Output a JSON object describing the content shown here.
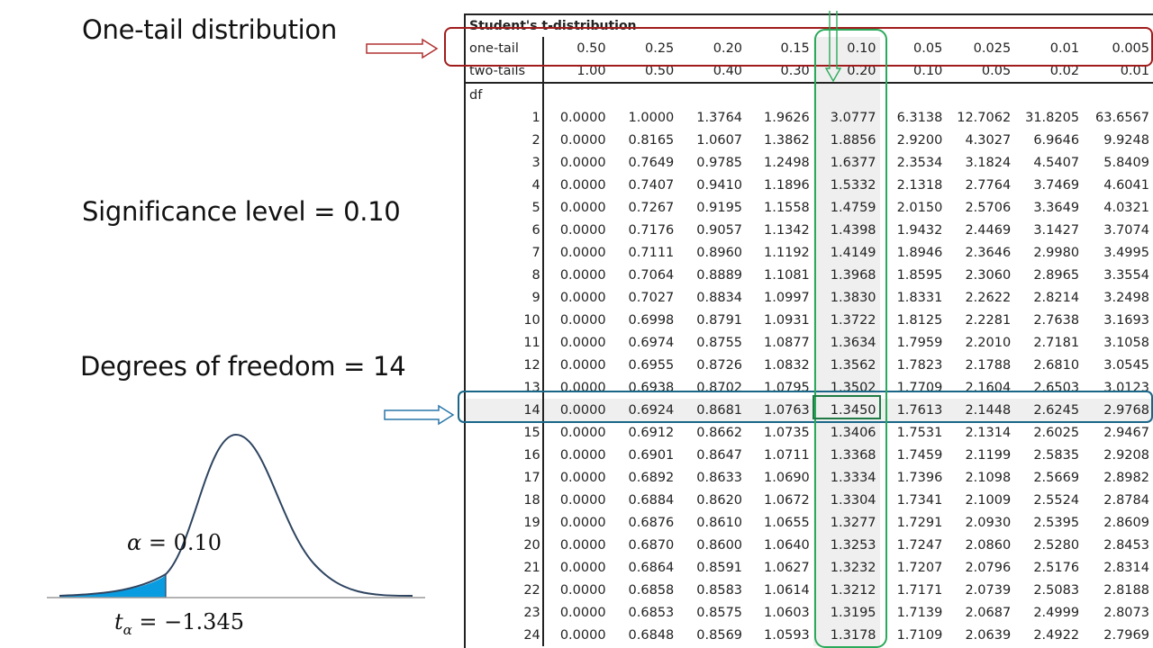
{
  "labels": {
    "one_tail": "One-tail distribution",
    "significance": "Significance level = 0.10",
    "dof": "Degrees of freedom = 14"
  },
  "figure": {
    "alpha_sym": "α",
    "alpha_eq": " = 0.10",
    "t_sym": "t",
    "t_sub": "α",
    "t_eq": " = −1.345",
    "curve_color": "#2e4460",
    "shade_color": "#0a9ce0"
  },
  "table": {
    "title": "Student's t-distribution",
    "one_tail_label": "one-tail",
    "two_tails_label": "two-tails",
    "df_label": "df",
    "one_tail": [
      "0.50",
      "0.25",
      "0.20",
      "0.15",
      "0.10",
      "0.05",
      "0.025",
      "0.01",
      "0.005"
    ],
    "two_tails": [
      "1.00",
      "0.50",
      "0.40",
      "0.30",
      "0.20",
      "0.10",
      "0.05",
      "0.02",
      "0.01"
    ],
    "rows": [
      [
        "1",
        "0.0000",
        "1.0000",
        "1.3764",
        "1.9626",
        "3.0777",
        "6.3138",
        "12.7062",
        "31.8205",
        "63.6567"
      ],
      [
        "2",
        "0.0000",
        "0.8165",
        "1.0607",
        "1.3862",
        "1.8856",
        "2.9200",
        "4.3027",
        "6.9646",
        "9.9248"
      ],
      [
        "3",
        "0.0000",
        "0.7649",
        "0.9785",
        "1.2498",
        "1.6377",
        "2.3534",
        "3.1824",
        "4.5407",
        "5.8409"
      ],
      [
        "4",
        "0.0000",
        "0.7407",
        "0.9410",
        "1.1896",
        "1.5332",
        "2.1318",
        "2.7764",
        "3.7469",
        "4.6041"
      ],
      [
        "5",
        "0.0000",
        "0.7267",
        "0.9195",
        "1.1558",
        "1.4759",
        "2.0150",
        "2.5706",
        "3.3649",
        "4.0321"
      ],
      [
        "6",
        "0.0000",
        "0.7176",
        "0.9057",
        "1.1342",
        "1.4398",
        "1.9432",
        "2.4469",
        "3.1427",
        "3.7074"
      ],
      [
        "7",
        "0.0000",
        "0.7111",
        "0.8960",
        "1.1192",
        "1.4149",
        "1.8946",
        "2.3646",
        "2.9980",
        "3.4995"
      ],
      [
        "8",
        "0.0000",
        "0.7064",
        "0.8889",
        "1.1081",
        "1.3968",
        "1.8595",
        "2.3060",
        "2.8965",
        "3.3554"
      ],
      [
        "9",
        "0.0000",
        "0.7027",
        "0.8834",
        "1.0997",
        "1.3830",
        "1.8331",
        "2.2622",
        "2.8214",
        "3.2498"
      ],
      [
        "10",
        "0.0000",
        "0.6998",
        "0.8791",
        "1.0931",
        "1.3722",
        "1.8125",
        "2.2281",
        "2.7638",
        "3.1693"
      ],
      [
        "11",
        "0.0000",
        "0.6974",
        "0.8755",
        "1.0877",
        "1.3634",
        "1.7959",
        "2.2010",
        "2.7181",
        "3.1058"
      ],
      [
        "12",
        "0.0000",
        "0.6955",
        "0.8726",
        "1.0832",
        "1.3562",
        "1.7823",
        "2.1788",
        "2.6810",
        "3.0545"
      ],
      [
        "13",
        "0.0000",
        "0.6938",
        "0.8702",
        "1.0795",
        "1.3502",
        "1.7709",
        "2.1604",
        "2.6503",
        "3.0123"
      ],
      [
        "14",
        "0.0000",
        "0.6924",
        "0.8681",
        "1.0763",
        "1.3450",
        "1.7613",
        "2.1448",
        "2.6245",
        "2.9768"
      ],
      [
        "15",
        "0.0000",
        "0.6912",
        "0.8662",
        "1.0735",
        "1.3406",
        "1.7531",
        "2.1314",
        "2.6025",
        "2.9467"
      ],
      [
        "16",
        "0.0000",
        "0.6901",
        "0.8647",
        "1.0711",
        "1.3368",
        "1.7459",
        "2.1199",
        "2.5835",
        "2.9208"
      ],
      [
        "17",
        "0.0000",
        "0.6892",
        "0.8633",
        "1.0690",
        "1.3334",
        "1.7396",
        "2.1098",
        "2.5669",
        "2.8982"
      ],
      [
        "18",
        "0.0000",
        "0.6884",
        "0.8620",
        "1.0672",
        "1.3304",
        "1.7341",
        "2.1009",
        "2.5524",
        "2.8784"
      ],
      [
        "19",
        "0.0000",
        "0.6876",
        "0.8610",
        "1.0655",
        "1.3277",
        "1.7291",
        "2.0930",
        "2.5395",
        "2.8609"
      ],
      [
        "20",
        "0.0000",
        "0.6870",
        "0.8600",
        "1.0640",
        "1.3253",
        "1.7247",
        "2.0860",
        "2.5280",
        "2.8453"
      ],
      [
        "21",
        "0.0000",
        "0.6864",
        "0.8591",
        "1.0627",
        "1.3232",
        "1.7207",
        "2.0796",
        "2.5176",
        "2.8314"
      ],
      [
        "22",
        "0.0000",
        "0.6858",
        "0.8583",
        "1.0614",
        "1.3212",
        "1.7171",
        "2.0739",
        "2.5083",
        "2.8188"
      ],
      [
        "23",
        "0.0000",
        "0.6853",
        "0.8575",
        "1.0603",
        "1.3195",
        "1.7139",
        "2.0687",
        "2.4999",
        "2.8073"
      ],
      [
        "24",
        "0.0000",
        "0.6848",
        "0.8569",
        "1.0593",
        "1.3178",
        "1.7109",
        "2.0639",
        "2.4922",
        "2.7969"
      ]
    ],
    "selected_df": "14",
    "selected_col_index": 4,
    "selected_value": "1.3450"
  },
  "colors": {
    "one_tail_highlight": "#a01c1c",
    "df_highlight": "#1a6688",
    "column_highlight": "#2aaa5a"
  }
}
